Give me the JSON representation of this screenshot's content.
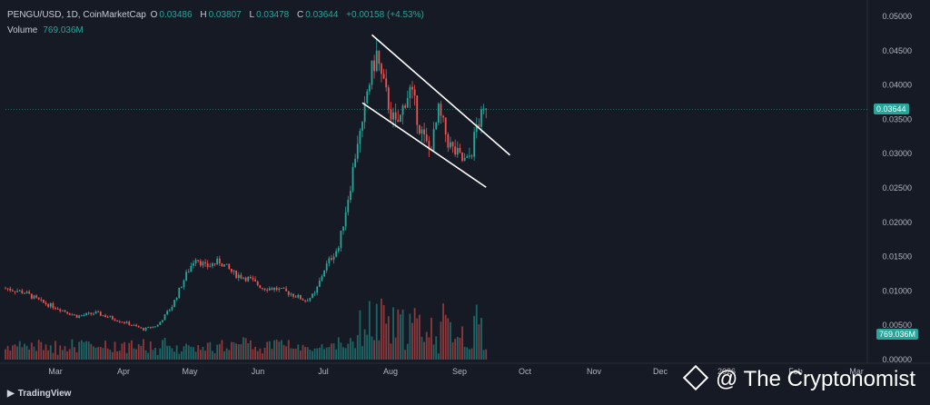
{
  "header": {
    "symbol": "PENGU/USD, 1D, CoinMarketCap",
    "open_label": "O",
    "open": "0.03486",
    "high_label": "H",
    "high": "0.03807",
    "low_label": "L",
    "low": "0.03478",
    "close_label": "C",
    "close": "0.03644",
    "change": "+0.00158 (+4.53%)",
    "volume_label": "Volume",
    "volume": "769.036M"
  },
  "price_tag": "0.03644",
  "volume_tag": "769.036M",
  "branding": {
    "tradingview": "TradingView",
    "watermark": "@ The Cryptonomist"
  },
  "colors": {
    "up": "#26a69a",
    "down": "#ef5350",
    "background": "#161a25",
    "trendline": "#ffffff"
  },
  "chart_data": {
    "type": "candlestick",
    "y_axis": {
      "ticks": [
        "0.05000",
        "0.04500",
        "0.04000",
        "0.03500",
        "0.03000",
        "0.02500",
        "0.02000",
        "0.01500",
        "0.01000",
        "0.00500",
        "0.00000"
      ],
      "range": [
        0,
        0.05
      ]
    },
    "x_axis": {
      "ticks": [
        "Mar",
        "Apr",
        "May",
        "Jun",
        "Jul",
        "Aug",
        "Sep",
        "Oct",
        "Nov",
        "Dec",
        "2026",
        "Feb",
        "Mar"
      ]
    },
    "close_series": [
      [
        0,
        0.0104
      ],
      [
        8,
        0.0098
      ],
      [
        15,
        0.0084
      ],
      [
        22,
        0.0075
      ],
      [
        30,
        0.0063
      ],
      [
        38,
        0.0068
      ],
      [
        45,
        0.006
      ],
      [
        52,
        0.0052
      ],
      [
        58,
        0.0044
      ],
      [
        64,
        0.005
      ],
      [
        70,
        0.0078
      ],
      [
        76,
        0.0124
      ],
      [
        80,
        0.015
      ],
      [
        84,
        0.0135
      ],
      [
        90,
        0.0143
      ],
      [
        96,
        0.0125
      ],
      [
        102,
        0.0118
      ],
      [
        108,
        0.0105
      ],
      [
        114,
        0.0103
      ],
      [
        120,
        0.0096
      ],
      [
        126,
        0.0086
      ],
      [
        130,
        0.0095
      ],
      [
        134,
        0.0132
      ],
      [
        138,
        0.0155
      ],
      [
        140,
        0.0163
      ],
      [
        142,
        0.02
      ],
      [
        145,
        0.0255
      ],
      [
        148,
        0.032
      ],
      [
        150,
        0.0335
      ],
      [
        152,
        0.039
      ],
      [
        154,
        0.042
      ],
      [
        156,
        0.0445
      ],
      [
        158,
        0.041
      ],
      [
        160,
        0.0385
      ],
      [
        162,
        0.036
      ],
      [
        164,
        0.034
      ],
      [
        166,
        0.0352
      ],
      [
        168,
        0.038
      ],
      [
        170,
        0.0392
      ],
      [
        172,
        0.037
      ],
      [
        174,
        0.034
      ],
      [
        176,
        0.032
      ],
      [
        178,
        0.0305
      ],
      [
        180,
        0.0325
      ],
      [
        182,
        0.036
      ],
      [
        184,
        0.034
      ],
      [
        186,
        0.0318
      ],
      [
        188,
        0.0305
      ],
      [
        190,
        0.0298
      ],
      [
        192,
        0.029
      ],
      [
        194,
        0.0288
      ],
      [
        196,
        0.0305
      ],
      [
        198,
        0.034
      ],
      [
        200,
        0.0352
      ],
      [
        202,
        0.0364
      ]
    ],
    "trendlines": [
      {
        "from": [
          154,
          0.0473
        ],
        "to": [
          212,
          0.0298
        ]
      },
      {
        "from": [
          150,
          0.0374
        ],
        "to": [
          202,
          0.0251
        ]
      }
    ],
    "last_close": 0.03644,
    "last_volume": "769.036M"
  }
}
